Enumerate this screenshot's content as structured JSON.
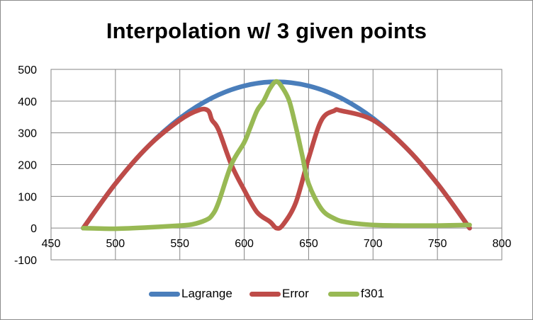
{
  "chart_data": {
    "type": "line",
    "title": "Interpolation w/ 3 given points",
    "xlabel": "",
    "ylabel": "",
    "xlim": [
      450,
      800
    ],
    "ylim": [
      -100,
      500
    ],
    "x_ticks": [
      450,
      500,
      550,
      600,
      650,
      700,
      750,
      800
    ],
    "y_ticks": [
      -100,
      0,
      100,
      200,
      300,
      400,
      500
    ],
    "grid": true,
    "legend_position": "bottom",
    "series": [
      {
        "name": "Lagrange",
        "color": "#4a7ebb",
        "x": [
          475,
          500,
          525,
          550,
          575,
          600,
          625,
          650,
          675,
          700,
          725,
          750,
          775
        ],
        "y": [
          0,
          140,
          256,
          346,
          410,
          448,
          461,
          448,
          410,
          346,
          256,
          140,
          0
        ]
      },
      {
        "name": "Error",
        "color": "#be4b48",
        "x": [
          475,
          500,
          525,
          550,
          565,
          572,
          575,
          580,
          590,
          600,
          610,
          620,
          625,
          630,
          640,
          650,
          660,
          670,
          675,
          700,
          725,
          750,
          775
        ],
        "y": [
          0,
          140,
          256,
          340,
          372,
          370,
          340,
          310,
          200,
          120,
          50,
          20,
          0,
          10,
          80,
          220,
          340,
          370,
          370,
          340,
          256,
          140,
          0
        ]
      },
      {
        "name": "f301",
        "color": "#98b954",
        "x": [
          475,
          500,
          525,
          550,
          560,
          570,
          575,
          580,
          590,
          600,
          605,
          610,
          615,
          620,
          625,
          630,
          635,
          640,
          645,
          650,
          660,
          670,
          680,
          700,
          725,
          750,
          775
        ],
        "y": [
          0,
          -2,
          2,
          8,
          12,
          25,
          40,
          80,
          200,
          270,
          320,
          370,
          400,
          440,
          462,
          440,
          400,
          320,
          230,
          140,
          60,
          30,
          18,
          10,
          8,
          8,
          10
        ]
      }
    ]
  }
}
